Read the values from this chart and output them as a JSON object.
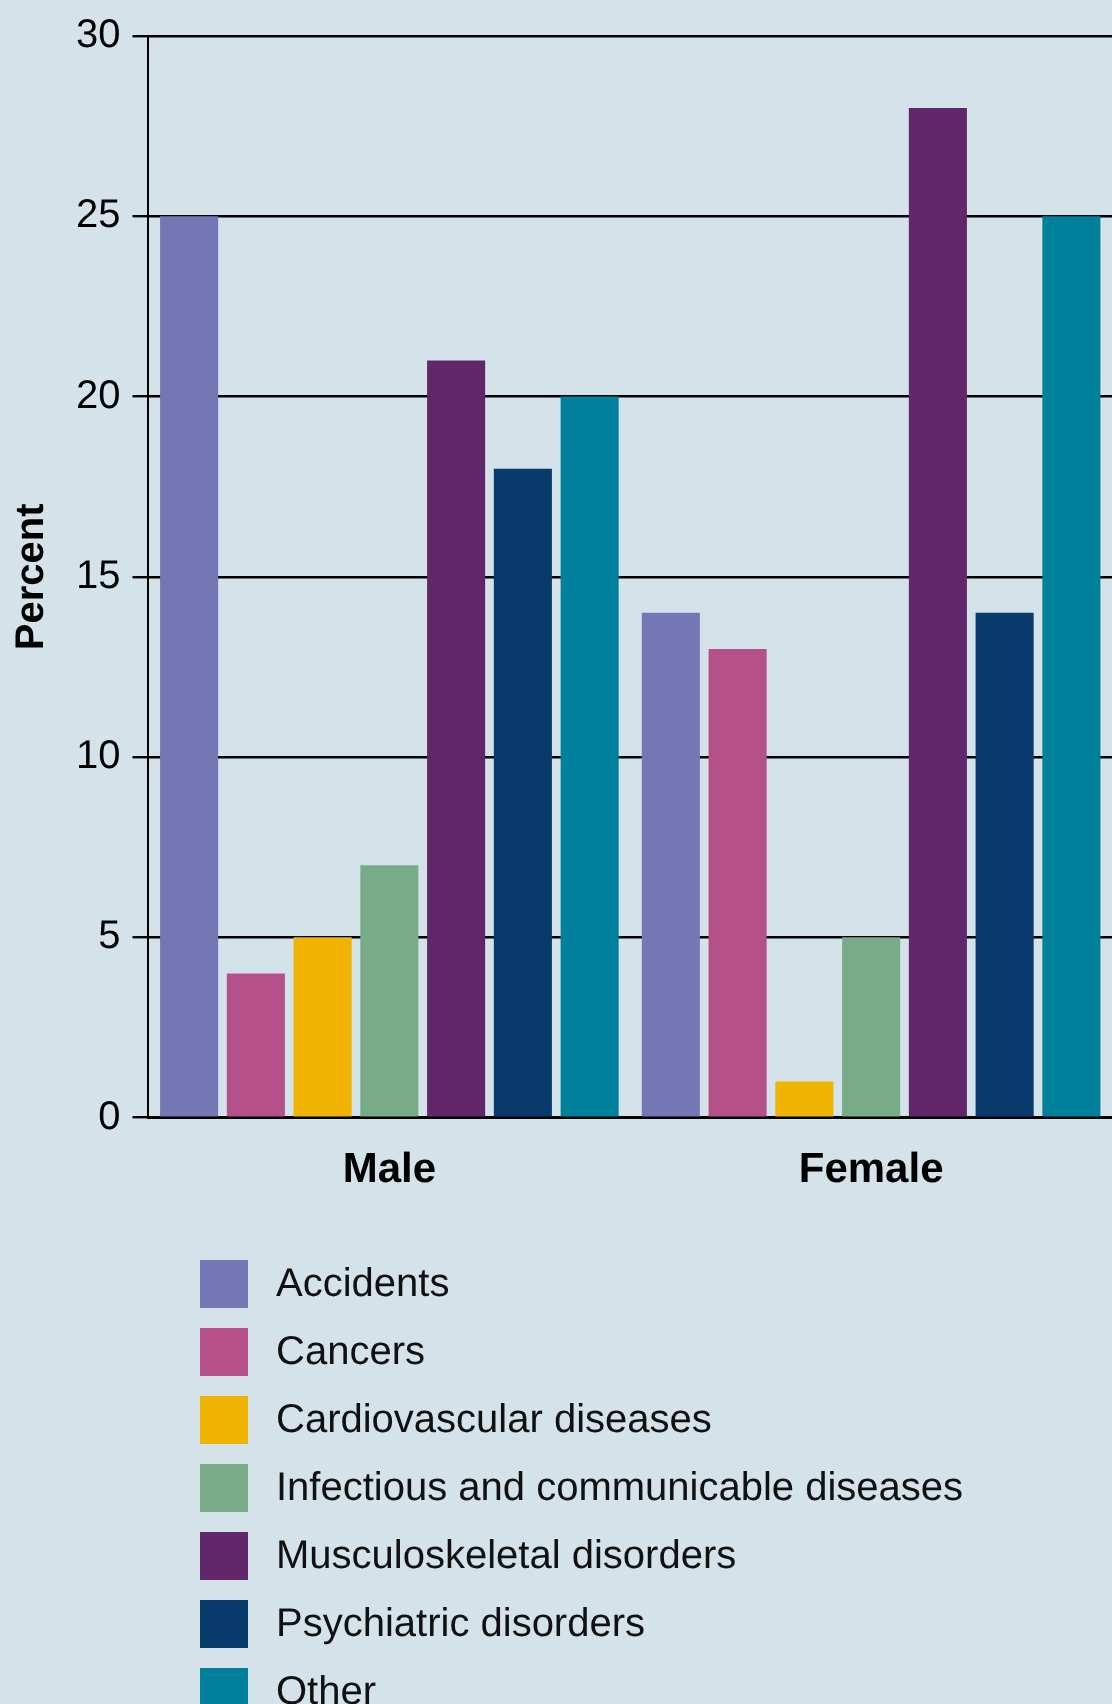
{
  "chart_data": {
    "type": "bar",
    "ylabel": "Percent",
    "categories": [
      "Male",
      "Female"
    ],
    "series": [
      {
        "name": "Accidents",
        "color": "#7577b5",
        "values": [
          25,
          14
        ]
      },
      {
        "name": "Cancers",
        "color": "#b5508a",
        "values": [
          4,
          13
        ]
      },
      {
        "name": "Cardiovascular diseases",
        "color": "#f0b400",
        "values": [
          5,
          1
        ]
      },
      {
        "name": "Infectious and communicable diseases",
        "color": "#78ab88",
        "values": [
          7,
          5
        ]
      },
      {
        "name": "Musculoskeletal disorders",
        "color": "#62276a",
        "values": [
          21,
          28
        ]
      },
      {
        "name": "Psychiatric disorders",
        "color": "#0a3a6b",
        "values": [
          18,
          14
        ]
      },
      {
        "name": "Other",
        "color": "#00809a",
        "values": [
          20,
          25
        ]
      }
    ],
    "ylim": [
      0,
      30
    ],
    "yticks": [
      0,
      5,
      10,
      15,
      20,
      25,
      30
    ],
    "grid": "y",
    "legend": "bottom"
  }
}
